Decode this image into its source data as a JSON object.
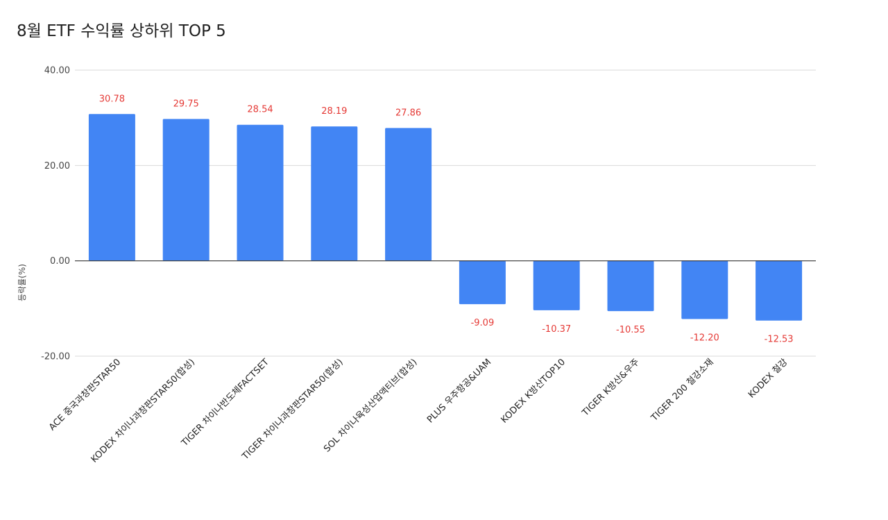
{
  "chart_data": {
    "type": "bar",
    "title": "8월 ETF 수익률 상하위 TOP 5",
    "xlabel": "",
    "ylabel": "등락률(%)",
    "ylim": [
      -20,
      40
    ],
    "yticks": [
      "40.00",
      "20.00",
      "0.00",
      "-20.00"
    ],
    "ytick_values": [
      40,
      20,
      0,
      -20
    ],
    "grid": true,
    "legend": "none",
    "categories": [
      "ACE 중국과창판STAR50",
      "KODEX 차이나과창판STAR50(합성)",
      "TIGER 차이나반도체FACTSET",
      "TIGER 차이나과창판STAR50(합성)",
      "SOL 차이나육성산업액티브(합성)",
      "PLUS 우주항공&UAM",
      "KODEX K방산TOP10",
      "TIGER K방산&우주",
      "TIGER 200 철강소재",
      "KODEX 철강"
    ],
    "values": [
      30.78,
      29.75,
      28.54,
      28.19,
      27.86,
      -9.09,
      -10.37,
      -10.55,
      -12.2,
      -12.53
    ],
    "value_labels": [
      "30.78",
      "29.75",
      "28.54",
      "28.19",
      "27.86",
      "-9.09",
      "-10.37",
      "-10.55",
      "-12.20",
      "-12.53"
    ],
    "colors": {
      "bar": "#4285f4",
      "data_label": "#e53935",
      "gridline": "#d9d9d9",
      "zero_line": "#333333"
    }
  }
}
